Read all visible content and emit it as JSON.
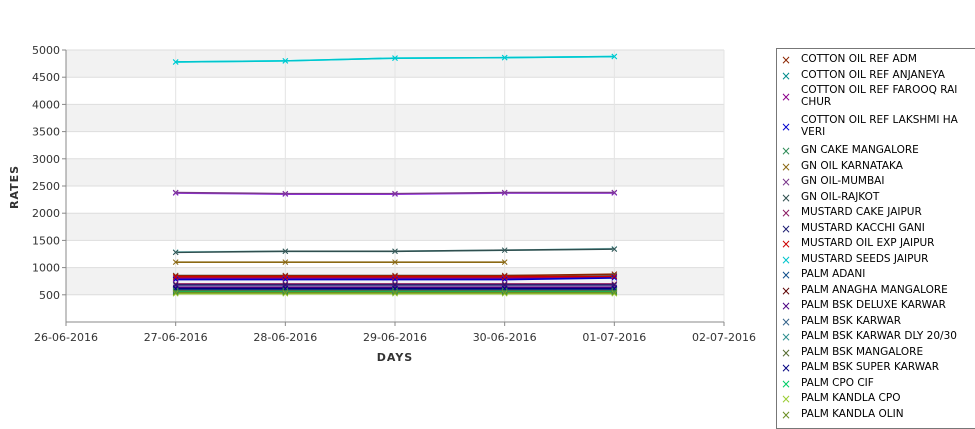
{
  "chart_data": {
    "type": "line",
    "xlabel": "DAYS",
    "ylabel": "RATES",
    "x_ticks": [
      "26-06-2016",
      "27-06-2016",
      "28-06-2016",
      "29-06-2016",
      "30-06-2016",
      "01-07-2016",
      "02-07-2016"
    ],
    "x": [
      "27-06-2016",
      "28-06-2016",
      "29-06-2016",
      "30-06-2016",
      "01-07-2016"
    ],
    "y_ticks": [
      500,
      1000,
      1500,
      2000,
      2500,
      3000,
      3500,
      4000,
      4500,
      5000
    ],
    "ylim": [
      0,
      5000
    ],
    "grid": true,
    "background_bands": "alternating light grey",
    "legend_position": "right",
    "series": [
      {
        "name": "COTTON OIL REF ADM",
        "color": "#8b2500",
        "values": [
          850,
          850,
          850,
          850,
          880
        ]
      },
      {
        "name": "COTTON OIL REF ANJANEYA",
        "color": "#008b8b",
        "values": [
          820,
          820,
          820,
          820,
          850
        ]
      },
      {
        "name": "COTTON OIL REF FAROOQ RAICHUR",
        "color": "#8b008b",
        "values": [
          800,
          800,
          800,
          800,
          830
        ]
      },
      {
        "name": "COTTON OIL REF LAKSHMI HAVERI",
        "color": "#0000cd",
        "values": [
          780,
          780,
          780,
          780,
          810
        ]
      },
      {
        "name": "GN CAKE MANGALORE",
        "color": "#2e8b57",
        "values": [
          560,
          560,
          560,
          560,
          560
        ]
      },
      {
        "name": "GN OIL KARNATAKA",
        "color": "#8b6914",
        "values": [
          1100,
          1100,
          1100,
          1100,
          null
        ]
      },
      {
        "name": "GN OIL-MUMBAI",
        "color": "#7a378b",
        "values": [
          2380,
          2360,
          2360,
          2380,
          2380
        ]
      },
      {
        "name": "GN OIL-RAJKOT",
        "color": "#2f4f4f",
        "values": [
          1280,
          1300,
          1300,
          1320,
          1340
        ]
      },
      {
        "name": "MUSTARD CAKE JAIPUR",
        "color": "#8b1c62",
        "values": [
          700,
          700,
          700,
          700,
          700
        ]
      },
      {
        "name": "MUSTARD KACCHI GANI",
        "color": "#191970",
        "values": [
          680,
          680,
          680,
          680,
          680
        ]
      },
      {
        "name": "MUSTARD OIL EXP JAIPUR",
        "color": "#cd0000",
        "values": [
          830,
          830,
          830,
          830,
          840
        ]
      },
      {
        "name": "MUSTARD SEEDS JAIPUR",
        "color": "#00c5cd",
        "values": [
          4780,
          4800,
          4850,
          4860,
          4880
        ]
      },
      {
        "name": "PALM ADANI",
        "color": "#104e8b",
        "values": [
          620,
          620,
          620,
          620,
          620
        ]
      },
      {
        "name": "PALM ANAGHA MANGALORE",
        "color": "#5c0000",
        "values": [
          600,
          600,
          600,
          600,
          600
        ]
      },
      {
        "name": "PALM BSK DELUXE KARWAR",
        "color": "#4b0082",
        "values": [
          640,
          640,
          640,
          640,
          640
        ]
      },
      {
        "name": "PALM BSK KARWAR",
        "color": "#36648b",
        "values": [
          590,
          590,
          590,
          590,
          590
        ]
      },
      {
        "name": "PALM BSK KARWAR DLY 20/30",
        "color": "#2f8f8f",
        "values": [
          580,
          580,
          580,
          580,
          580
        ]
      },
      {
        "name": "PALM BSK MANGALORE",
        "color": "#556b2f",
        "values": [
          570,
          570,
          570,
          570,
          570
        ]
      },
      {
        "name": "PALM BSK SUPER KARWAR",
        "color": "#000080",
        "values": [
          610,
          610,
          610,
          610,
          610
        ]
      },
      {
        "name": "PALM CPO CIF",
        "color": "#00cd66",
        "values": [
          550,
          550,
          550,
          550,
          550
        ]
      },
      {
        "name": "PALM KANDLA CPO",
        "color": "#9acd32",
        "values": [
          530,
          530,
          530,
          530,
          530
        ]
      },
      {
        "name": "PALM KANDLA OLIN",
        "color": "#6b8e23",
        "values": [
          540,
          540,
          540,
          540,
          540
        ]
      }
    ],
    "extra_lines": [
      {
        "color": "#00ffff",
        "values": [
          4780,
          4800,
          4850,
          4860,
          4880
        ]
      },
      {
        "color": "#aeeeee",
        "values": [
          1290,
          1300,
          1300,
          1320,
          1350
        ]
      },
      {
        "color": "#9b30ff",
        "values": [
          2370,
          2350,
          2350,
          2370,
          2370
        ]
      },
      {
        "color": "#9acd32",
        "values": [
          520,
          520,
          520,
          520,
          520
        ]
      },
      {
        "color": "#a9a9a9",
        "values": [
          860,
          860,
          860,
          860,
          860
        ]
      }
    ]
  },
  "legend": {
    "items": [
      {
        "lines": [
          "COTTON OIL REF ADM"
        ],
        "marker": "×"
      },
      {
        "lines": [
          "COTTON OIL REF ANJANEYA"
        ],
        "marker": "×"
      },
      {
        "lines": [
          "COTTON OIL REF FAROOQ RAI",
          "CHUR"
        ],
        "marker": "×"
      },
      {
        "lines": [
          "COTTON OIL REF LAKSHMI HA",
          "VERI"
        ],
        "marker": "×"
      },
      {
        "lines": [
          "GN CAKE MANGALORE"
        ],
        "marker": "×"
      },
      {
        "lines": [
          "GN OIL KARNATAKA"
        ],
        "marker": "×"
      },
      {
        "lines": [
          "GN OIL-MUMBAI"
        ],
        "marker": "×"
      },
      {
        "lines": [
          "GN OIL-RAJKOT"
        ],
        "marker": "×"
      },
      {
        "lines": [
          "MUSTARD CAKE JAIPUR"
        ],
        "marker": "×"
      },
      {
        "lines": [
          "MUSTARD KACCHI GANI"
        ],
        "marker": "×"
      },
      {
        "lines": [
          "MUSTARD OIL EXP JAIPUR"
        ],
        "marker": "×"
      },
      {
        "lines": [
          "MUSTARD SEEDS JAIPUR"
        ],
        "marker": "×"
      },
      {
        "lines": [
          "PALM ADANI"
        ],
        "marker": "×"
      },
      {
        "lines": [
          "PALM ANAGHA MANGALORE"
        ],
        "marker": "×"
      },
      {
        "lines": [
          "PALM BSK DELUXE KARWAR"
        ],
        "marker": "×"
      },
      {
        "lines": [
          "PALM BSK KARWAR"
        ],
        "marker": "×"
      },
      {
        "lines": [
          "PALM BSK KARWAR DLY 20/30"
        ],
        "marker": "×"
      },
      {
        "lines": [
          "PALM BSK MANGALORE"
        ],
        "marker": "×"
      },
      {
        "lines": [
          "PALM BSK SUPER KARWAR"
        ],
        "marker": "×"
      },
      {
        "lines": [
          "PALM CPO CIF"
        ],
        "marker": "×"
      },
      {
        "lines": [
          "PALM KANDLA CPO"
        ],
        "marker": "×"
      },
      {
        "lines": [
          "PALM KANDLA OLIN"
        ],
        "marker": "×"
      }
    ]
  }
}
